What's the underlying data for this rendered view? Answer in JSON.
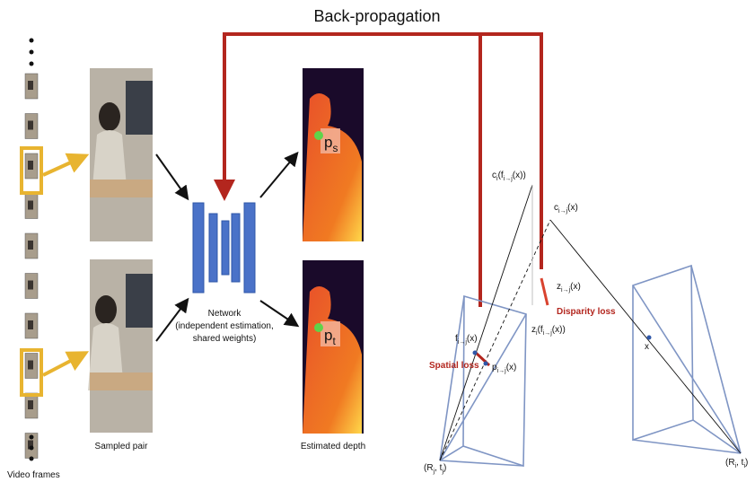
{
  "title": "Back-propagation",
  "captions": {
    "frames": "Video frames",
    "pair": "Sampled pair",
    "network": [
      "Network",
      "(independent estimation,",
      "shared weights)"
    ],
    "depth": "Estimated depth"
  },
  "depth_labels": [
    [
      "p",
      "s"
    ],
    [
      "p",
      "t"
    ]
  ],
  "losses": {
    "spatial": "Spatial loss",
    "disparity": "Disparity loss"
  },
  "geometry_labels": [
    [
      "c",
      "i",
      "(f",
      "i→j",
      "(x))"
    ],
    [
      "c",
      "i→j",
      "(x)"
    ],
    [
      "z",
      "i→j",
      "(x)"
    ],
    [
      "z",
      "i",
      "(f",
      "i→j",
      "(x))"
    ],
    [
      "f",
      "i→j",
      "(x)"
    ],
    [
      "p",
      "i→j",
      "(x)"
    ],
    [
      "x"
    ],
    [
      "(R",
      "j",
      ", t",
      "j",
      ")"
    ],
    [
      "(R",
      "i",
      ", t",
      "i",
      ")"
    ]
  ]
}
